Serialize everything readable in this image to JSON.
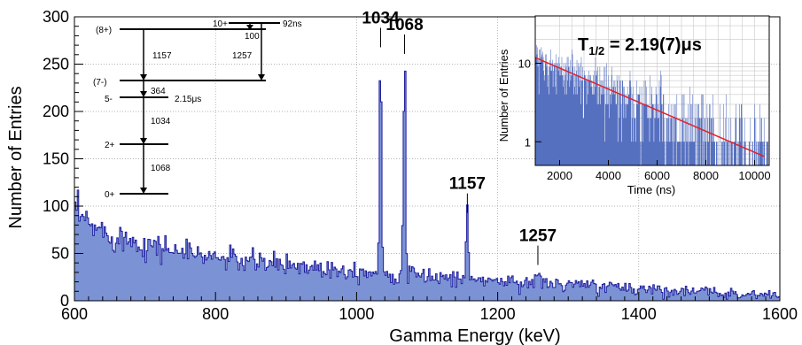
{
  "chart_data": [
    {
      "type": "area",
      "xlabel": "Gamma Energy (keV)",
      "ylabel": "Number of Entries",
      "xlim": [
        600,
        1600
      ],
      "ylim": [
        0,
        300
      ],
      "x_ticks": [
        "600",
        "800",
        "1000",
        "1200",
        "1400",
        "1600"
      ],
      "y_ticks": [
        "0",
        "50",
        "100",
        "150",
        "200",
        "250",
        "300"
      ],
      "grid": true,
      "bin_width_keV": 2,
      "fill_color": "#7b93d4",
      "line_color": "#1c1c9c",
      "background_points": [
        {
          "x": 600,
          "y": 95
        },
        {
          "x": 620,
          "y": 80
        },
        {
          "x": 650,
          "y": 70
        },
        {
          "x": 700,
          "y": 60
        },
        {
          "x": 750,
          "y": 52
        },
        {
          "x": 800,
          "y": 46
        },
        {
          "x": 850,
          "y": 41
        },
        {
          "x": 900,
          "y": 38
        },
        {
          "x": 950,
          "y": 35
        },
        {
          "x": 1000,
          "y": 32
        },
        {
          "x": 1050,
          "y": 29
        },
        {
          "x": 1100,
          "y": 26
        },
        {
          "x": 1150,
          "y": 24
        },
        {
          "x": 1200,
          "y": 21
        },
        {
          "x": 1250,
          "y": 19
        },
        {
          "x": 1300,
          "y": 17
        },
        {
          "x": 1350,
          "y": 15
        },
        {
          "x": 1400,
          "y": 13
        },
        {
          "x": 1450,
          "y": 11
        },
        {
          "x": 1500,
          "y": 9
        },
        {
          "x": 1550,
          "y": 7
        },
        {
          "x": 1600,
          "y": 6
        }
      ],
      "peaks": [
        {
          "label": "1034",
          "energy": 1034,
          "height": 265
        },
        {
          "label": "1068",
          "energy": 1068,
          "height": 258
        },
        {
          "label": "1157",
          "energy": 1157,
          "height": 90
        },
        {
          "label": "1257",
          "energy": 1257,
          "height": 35
        }
      ]
    },
    {
      "type": "line",
      "xlabel": "Time (ns)",
      "ylabel": "Number of Entries",
      "xlim": [
        1000,
        10600
      ],
      "ylim": [
        0.5,
        40
      ],
      "log_y": true,
      "x_ticks": [
        "2000",
        "4000",
        "6000",
        "8000",
        "10000"
      ],
      "y_ticks": [
        "1",
        "10"
      ],
      "grid": true,
      "annotation": "T",
      "annotation_sub": "1/2",
      "annotation_value": " = 2.19(7)μs",
      "fit": {
        "x": [
          1000,
          10400
        ],
        "y": [
          11.8,
          0.65
        ],
        "color": "#e0202a"
      },
      "histogram_color": "#5670c0"
    }
  ],
  "level_scheme": {
    "levels": [
      {
        "spin": "(8+)"
      },
      {
        "spin": "(7-)"
      },
      {
        "spin": "5-",
        "lifetime": "2.15μs"
      },
      {
        "spin": "2+"
      },
      {
        "spin": "0+"
      },
      {
        "spin": "10+",
        "lifetime": "92ns"
      }
    ],
    "transitions": [
      {
        "label": "1157"
      },
      {
        "label": "1257"
      },
      {
        "label": "364"
      },
      {
        "label": "1034"
      },
      {
        "label": "1068"
      },
      {
        "label": "100"
      }
    ]
  }
}
